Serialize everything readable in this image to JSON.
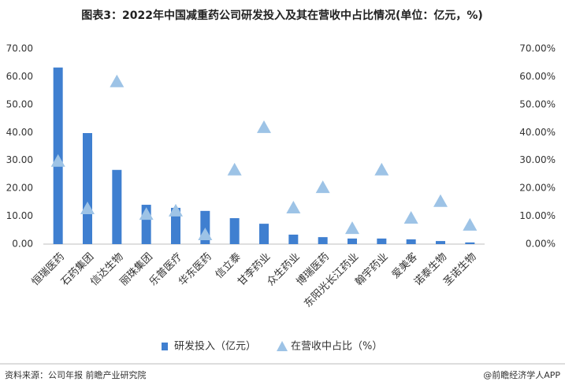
{
  "chart_data": {
    "type": "bar",
    "title": "图表3：2022年中国减重药公司研发投入及其在营收中占比情况(单位：亿元，%)",
    "categories": [
      "恒瑞医药",
      "石药集团",
      "信达生物",
      "丽珠集团",
      "乐普医疗",
      "华东医药",
      "信立泰",
      "甘李药业",
      "众生药业",
      "博瑞医药",
      "东阳光长江药业",
      "翰宇药业",
      "爱美客",
      "诺泰生物",
      "圣诺生物"
    ],
    "series": [
      {
        "name": "研发投入（亿元）",
        "type": "bar",
        "color": "#3f7fd0",
        "values": [
          63.3,
          39.8,
          26.6,
          14.1,
          13.0,
          11.9,
          9.3,
          7.3,
          3.4,
          2.5,
          2.0,
          2.0,
          1.7,
          1.1,
          0.6
        ]
      },
      {
        "name": "在营收中占比（%）",
        "type": "scatter",
        "marker": "triangle",
        "axis": "y2",
        "color": "#9dc3e6",
        "values": [
          29.7,
          12.7,
          58.2,
          10.7,
          11.9,
          3.4,
          26.6,
          41.8,
          13.0,
          20.3,
          5.6,
          26.6,
          9.3,
          15.3,
          6.8
        ]
      }
    ],
    "ylim": [
      0,
      70
    ],
    "yticks": [
      {
        "value": 0,
        "label": "0.00"
      },
      {
        "value": 10,
        "label": "10.00"
      },
      {
        "value": 20,
        "label": "20.00"
      },
      {
        "value": 30,
        "label": "30.00"
      },
      {
        "value": 40,
        "label": "40.00"
      },
      {
        "value": 50,
        "label": "50.00"
      },
      {
        "value": 60,
        "label": "60.00"
      },
      {
        "value": 70,
        "label": "70.00"
      }
    ],
    "y2lim": [
      0,
      70
    ],
    "y2ticks": [
      {
        "value": 0,
        "label": "0.00%"
      },
      {
        "value": 10,
        "label": "10.00%"
      },
      {
        "value": 20,
        "label": "20.00%"
      },
      {
        "value": 30,
        "label": "30.00%"
      },
      {
        "value": 40,
        "label": "40.00%"
      },
      {
        "value": 50,
        "label": "50.00%"
      },
      {
        "value": 60,
        "label": "60.00%"
      },
      {
        "value": 70,
        "label": "70.00%"
      }
    ],
    "grid": false,
    "legend": "bottom",
    "source": "资料来源：公司年报 前瞻产业研究院",
    "credit": "@前瞻经济学人APP"
  }
}
